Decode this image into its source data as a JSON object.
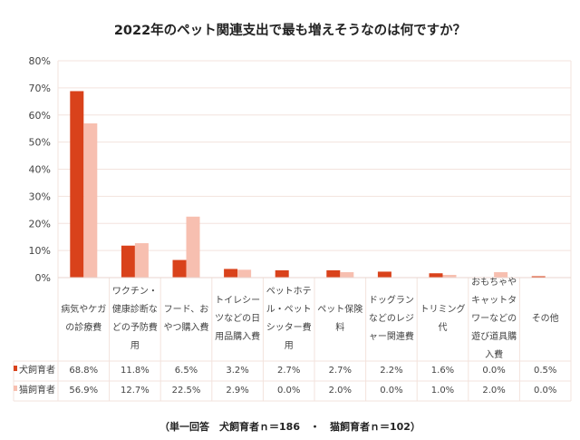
{
  "chart_data": {
    "type": "bar",
    "title": "2022年のペット関連支出で最も増えそうなのは何ですか？",
    "categories": [
      "病気やケガの診療費",
      "ワクチン・健康診断などの予防費用",
      "フード、おやつ購入費",
      "トイレシーツなどの日用品購入費",
      "ペットホテル・ペットシッター費用",
      "ペット保険料",
      "ドッグランなどのレジャー関連費",
      "トリミング代",
      "おもちゃやキャットタワーなどの遊び道具購入費",
      "その他"
    ],
    "series": [
      {
        "name": "犬飼育者",
        "color": "#D9421B",
        "values": [
          68.8,
          11.8,
          6.5,
          3.2,
          2.7,
          2.7,
          2.2,
          1.6,
          0.0,
          0.5
        ],
        "labels": [
          "68.8%",
          "11.8%",
          "6.5%",
          "3.2%",
          "2.7%",
          "2.7%",
          "2.2%",
          "1.6%",
          "0.0%",
          "0.5%"
        ]
      },
      {
        "name": "猫飼育者",
        "color": "#F7BFB0",
        "values": [
          56.9,
          12.7,
          22.5,
          2.9,
          0.0,
          2.0,
          0.0,
          1.0,
          2.0,
          0.0
        ],
        "labels": [
          "56.9%",
          "12.7%",
          "22.5%",
          "2.9%",
          "0.0%",
          "2.0%",
          "0.0%",
          "1.0%",
          "2.0%",
          "0.0%"
        ]
      }
    ],
    "ylim": [
      0,
      80
    ],
    "yticks": [
      "0%",
      "10%",
      "20%",
      "30%",
      "40%",
      "50%",
      "60%",
      "70%",
      "80%"
    ],
    "grid": true,
    "legend": "data-table",
    "footnote": "（単一回答　犬飼育者ｎ＝186　・　猫飼育者ｎ＝102）"
  }
}
